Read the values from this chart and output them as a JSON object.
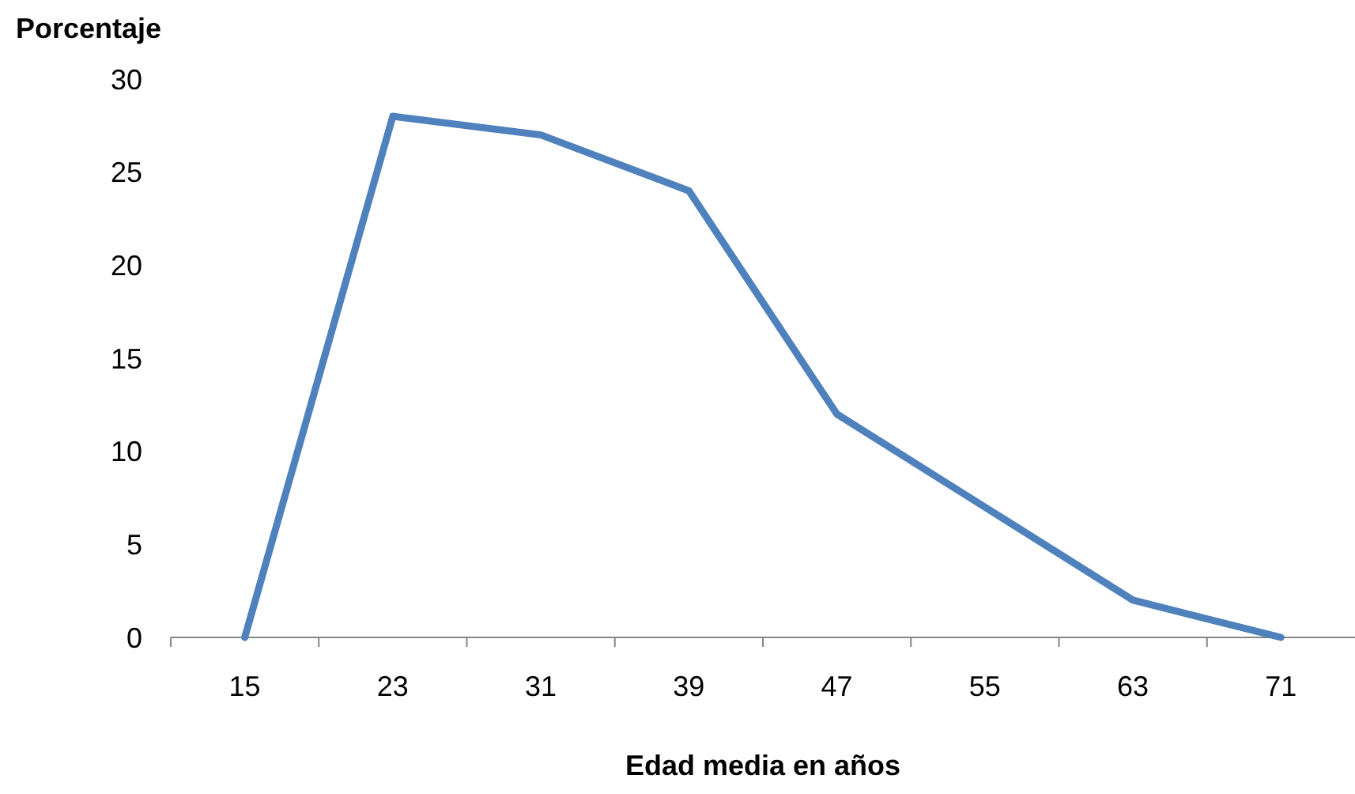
{
  "chart_data": {
    "type": "line",
    "xlabel": "Edad media en años",
    "ylabel": "Porcentaje",
    "categories": [
      "15",
      "23",
      "31",
      "39",
      "47",
      "55",
      "63",
      "71"
    ],
    "series": [
      {
        "color": "#4f81bd",
        "values": [
          0,
          28,
          27,
          24,
          12,
          7,
          2,
          0
        ]
      }
    ],
    "ylim": [
      0,
      30
    ],
    "yticks": [
      0,
      5,
      10,
      15,
      20,
      25,
      30
    ],
    "grid": false,
    "marker": "none",
    "line_style": "solid"
  }
}
